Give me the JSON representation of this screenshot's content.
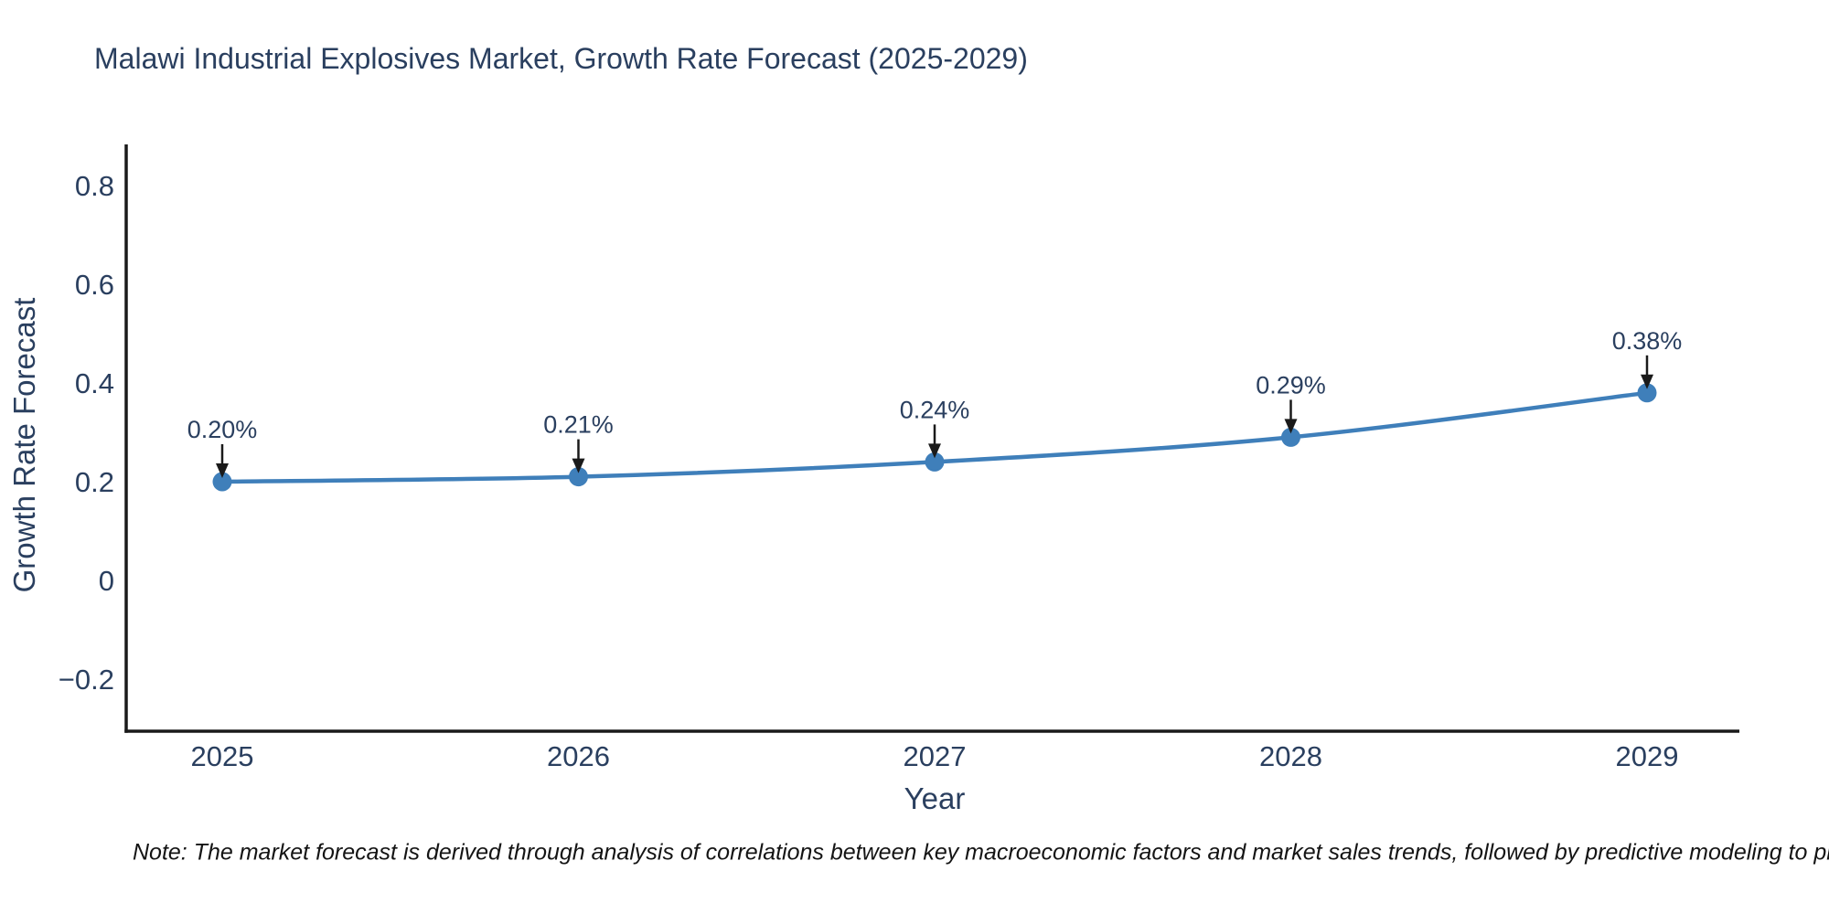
{
  "chart": {
    "title": "Malawi Industrial Explosives Market, Growth Rate Forecast (2025-2029)",
    "xlabel": "Year",
    "ylabel": "Growth Rate Forecast",
    "note": "Note: The market forecast is derived through analysis of correlations between key macroeconomic factors and market sales trends, followed by predictive modeling to project future sales."
  },
  "chart_data": {
    "type": "line",
    "title": "Malawi Industrial Explosives Market, Growth Rate Forecast (2025-2029)",
    "xlabel": "Year",
    "ylabel": "Growth Rate Forecast",
    "x": [
      2025,
      2026,
      2027,
      2028,
      2029
    ],
    "values": [
      0.2,
      0.21,
      0.24,
      0.29,
      0.38
    ],
    "point_labels": [
      "0.20%",
      "0.21%",
      "0.24%",
      "0.29%",
      "0.38%"
    ],
    "x_tick_labels": [
      "2025",
      "2026",
      "2027",
      "2028",
      "2029"
    ],
    "y_ticks": [
      0.8,
      0.6,
      0.4,
      0.2,
      0,
      -0.2
    ],
    "y_tick_labels": [
      "0.8",
      "0.6",
      "0.4",
      "0.2",
      "0",
      "−0.2"
    ],
    "ylim": [
      -0.31,
      0.88
    ],
    "grid": false,
    "legend_position": "none",
    "line_color": "#3f7fba",
    "marker_color": "#3f7fba",
    "axis_color": "#1a1a1a",
    "text_color": "#2a3f5f",
    "arrow_color": "#1a1a1a"
  }
}
